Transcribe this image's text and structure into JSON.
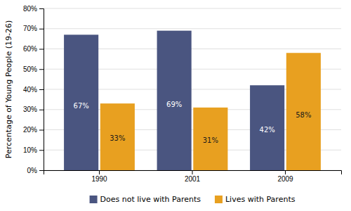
{
  "chart_data": {
    "type": "bar",
    "categories": [
      "1990",
      "2001",
      "2009"
    ],
    "series": [
      {
        "name": "Does not live with Parents",
        "color": "#4A5580",
        "values": [
          67,
          69,
          42
        ],
        "value_labels": [
          "67%",
          "69%",
          "42%"
        ]
      },
      {
        "name": "Lives with Parents",
        "color": "#E8A020",
        "values": [
          33,
          31,
          58
        ],
        "value_labels": [
          "33%",
          "31%",
          "58%"
        ]
      }
    ],
    "ylabel": "Percentage of Young People (19-26)",
    "ylim": [
      0,
      80
    ],
    "yticks": [
      {
        "value": 0,
        "label": "0%"
      },
      {
        "value": 10,
        "label": "10%"
      },
      {
        "value": 20,
        "label": "20%"
      },
      {
        "value": 30,
        "label": "30%"
      },
      {
        "value": 40,
        "label": "40%"
      },
      {
        "value": 50,
        "label": "50%"
      },
      {
        "value": 60,
        "label": "60%"
      },
      {
        "value": 70,
        "label": "70%"
      },
      {
        "value": 80,
        "label": "80%"
      }
    ],
    "grid": true,
    "legend": "bottom",
    "data_labels": true
  }
}
